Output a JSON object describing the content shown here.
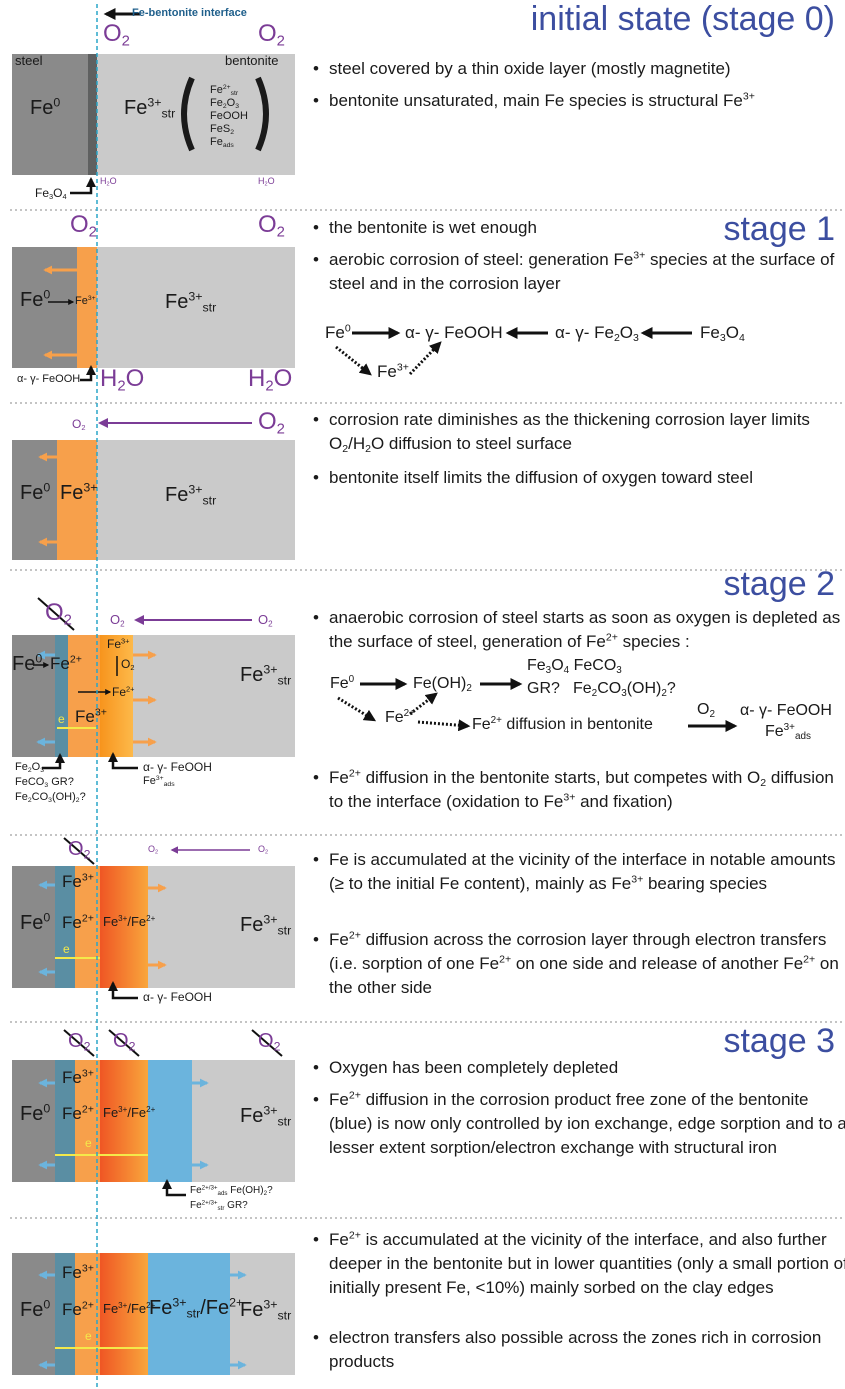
{
  "interface_label": "Fe-bentonite interface",
  "panels": [
    {
      "heading": "initial state (stage 0)",
      "labels": [
        [
          "O",
          {
            "sub": "2"
          }
        ],
        [
          "O",
          {
            "sub": "2"
          }
        ],
        "steel",
        "bentonite",
        [
          "Fe",
          {
            "sup": "0"
          }
        ],
        [
          "Fe",
          {
            "sup": "3+"
          },
          {
            "sub": "str"
          }
        ],
        [
          "Fe",
          {
            "sup": "2+"
          },
          {
            "sub": "str"
          }
        ],
        [
          "Fe",
          {
            "sub": "2"
          },
          "O",
          {
            "sub": "3"
          }
        ],
        "FeOOH",
        [
          "FeS",
          {
            "sub": "2"
          }
        ],
        [
          "Fe",
          {
            "sub": "ads"
          }
        ],
        [
          "H",
          {
            "sub": "2"
          },
          "O"
        ],
        [
          "H",
          {
            "sub": "2"
          },
          "O"
        ],
        [
          "Fe",
          {
            "sub": "3"
          },
          "O",
          {
            "sub": "4"
          }
        ]
      ],
      "bullets": [
        "steel covered by a thin oxide layer (mostly magnetite)",
        [
          "bentonite unsaturated, main Fe species is structural Fe",
          {
            "sup": "3+"
          }
        ]
      ]
    },
    {
      "heading": "stage 1",
      "labels": [
        [
          "O",
          {
            "sub": "2"
          }
        ],
        [
          "O",
          {
            "sub": "2"
          }
        ],
        [
          "Fe",
          {
            "sup": "0"
          }
        ],
        [
          "Fe",
          {
            "sup": "3+"
          }
        ],
        [
          "Fe",
          {
            "sup": "3+"
          },
          {
            "sub": "str"
          }
        ],
        "α- γ- FeOOH",
        [
          "H",
          {
            "sub": "2"
          },
          "O"
        ],
        [
          "H",
          {
            "sub": "2"
          },
          "O"
        ]
      ],
      "bullets": [
        "the bentonite is wet enough",
        [
          "aerobic corrosion of steel: generation Fe",
          {
            "sup": "3+"
          },
          " species at the surface of steel and in the corrosion layer"
        ]
      ],
      "scheme": [
        [
          "Fe",
          {
            "sup": "0"
          }
        ],
        "α- γ- FeOOH",
        [
          "α- γ- Fe",
          {
            "sub": "2"
          },
          "O",
          {
            "sub": "3"
          }
        ],
        [
          "Fe",
          {
            "sub": "3"
          },
          "O",
          {
            "sub": "4"
          }
        ],
        [
          "Fe",
          {
            "sup": "3+"
          }
        ]
      ]
    },
    {
      "labels": [
        [
          "O",
          {
            "sub": "2"
          }
        ],
        [
          "O",
          {
            "sub": "2"
          }
        ],
        [
          "Fe",
          {
            "sup": "0"
          }
        ],
        [
          "Fe",
          {
            "sup": "3+"
          }
        ],
        [
          "Fe",
          {
            "sup": "3+"
          },
          {
            "sub": "str"
          }
        ]
      ],
      "bullets": [
        [
          "corrosion rate diminishes as the thickening corrosion layer limits O",
          {
            "sub": "2"
          },
          "/H",
          {
            "sub": "2"
          },
          "O diffusion  to steel surface"
        ],
        "bentonite itself limits the diffusion of oxygen toward steel"
      ]
    },
    {
      "heading": "stage 2",
      "labels": [
        [
          "O",
          {
            "sub": "2"
          }
        ],
        [
          "O",
          {
            "sub": "2"
          }
        ],
        [
          "O",
          {
            "sub": "2"
          }
        ],
        [
          "Fe",
          {
            "sup": "0"
          }
        ],
        [
          "Fe",
          {
            "sup": "2+"
          }
        ],
        [
          "Fe",
          {
            "sup": "3+"
          }
        ],
        [
          "O",
          {
            "sub": "2"
          }
        ],
        [
          "Fe",
          {
            "sup": "2+"
          }
        ],
        [
          "Fe",
          {
            "sup": "3+"
          }
        ],
        "e",
        [
          "Fe",
          {
            "sup": "3+"
          },
          {
            "sub": "str"
          }
        ],
        [
          "Fe",
          {
            "sub": "2"
          },
          "O",
          {
            "sub": "3"
          }
        ],
        [
          "FeCO",
          {
            "sub": "3"
          },
          "  GR?"
        ],
        [
          "Fe",
          {
            "sub": "2"
          },
          "CO",
          {
            "sub": "3"
          },
          "(OH)",
          {
            "sub": "2"
          },
          "?"
        ],
        "α- γ- FeOOH",
        [
          "Fe",
          {
            "sup": "3+"
          },
          {
            "sub": "ads"
          }
        ]
      ],
      "bullets": [
        [
          "anaerobic corrosion of steel starts as soon as oxygen is depleted as the surface of steel, generation of Fe",
          {
            "sup": "2+"
          },
          " species :"
        ],
        [
          "Fe",
          {
            "sup": "2+"
          },
          " diffusion in the bentonite starts, but competes with O",
          {
            "sub": "2"
          },
          " diffusion to the interface (oxidation to Fe",
          {
            "sup": "3+"
          },
          " and fixation)"
        ]
      ],
      "scheme": [
        [
          "Fe",
          {
            "sup": "0"
          }
        ],
        [
          "Fe(OH)",
          {
            "sub": "2"
          }
        ],
        [
          "Fe",
          {
            "sub": "3"
          },
          "O",
          {
            "sub": "4"
          },
          "  FeCO",
          {
            "sub": "3"
          }
        ],
        "GR?",
        [
          "Fe",
          {
            "sub": "2"
          },
          "CO",
          {
            "sub": "3"
          },
          "(OH)",
          {
            "sub": "2"
          },
          "?"
        ],
        [
          "Fe",
          {
            "sup": "2+"
          }
        ],
        [
          "Fe",
          {
            "sup": "2+"
          },
          " diffusion  in bentonite"
        ],
        [
          "O",
          {
            "sub": "2"
          }
        ],
        "α- γ- FeOOH",
        [
          "Fe",
          {
            "sup": "3+"
          },
          {
            "sub": "ads"
          }
        ]
      ]
    },
    {
      "labels": [
        [
          "O",
          {
            "sub": "2"
          }
        ],
        [
          "O",
          {
            "sub": "2"
          }
        ],
        [
          "O",
          {
            "sub": "2"
          }
        ],
        [
          "Fe",
          {
            "sup": "3+"
          }
        ],
        [
          "Fe",
          {
            "sup": "0"
          }
        ],
        [
          "Fe",
          {
            "sup": "2+"
          }
        ],
        [
          "Fe",
          {
            "sup": "3+"
          },
          "/Fe",
          {
            "sup": "2+"
          }
        ],
        "e",
        [
          "Fe",
          {
            "sup": "3+"
          },
          {
            "sub": "str"
          }
        ],
        "α- γ- FeOOH"
      ],
      "bullets": [
        [
          "Fe is accumulated at the vicinity of the interface  in notable amounts (≥ to the initial Fe content), mainly as Fe",
          {
            "sup": "3+"
          },
          " bearing species"
        ],
        [
          "Fe",
          {
            "sup": "2+"
          },
          " diffusion across the corrosion layer through electron transfers (i.e. sorption of one Fe",
          {
            "sup": "2+"
          },
          " on one side and release of another Fe",
          {
            "sup": "2+"
          },
          " on the other side"
        ]
      ]
    },
    {
      "heading": "stage 3",
      "labels": [
        [
          "O",
          {
            "sub": "2"
          }
        ],
        [
          "O",
          {
            "sub": "2"
          }
        ],
        [
          "O",
          {
            "sub": "2"
          }
        ],
        [
          "Fe",
          {
            "sup": "3+"
          }
        ],
        [
          "Fe",
          {
            "sup": "0"
          }
        ],
        [
          "Fe",
          {
            "sup": "2+"
          }
        ],
        [
          "Fe",
          {
            "sup": "3+"
          },
          "/Fe",
          {
            "sup": "2+"
          }
        ],
        "e",
        [
          "Fe",
          {
            "sup": "3+"
          },
          {
            "sub": "str"
          }
        ],
        [
          "Fe",
          {
            "sup": "2+/3+"
          },
          {
            "sub": "ads"
          },
          " Fe(OH)",
          {
            "sub": "2"
          },
          "?"
        ],
        [
          "Fe",
          {
            "sup": "2+/3+"
          },
          {
            "sub": "str"
          },
          " GR?"
        ]
      ],
      "bullets": [
        "Oxygen has been completely depleted",
        [
          "Fe",
          {
            "sup": "2+"
          },
          " diffusion in the corrosion product free zone of the bentonite (blue) is now only controlled by ion exchange, edge sorption and to a lesser extent sorption/electron exchange with structural iron"
        ]
      ]
    },
    {
      "labels": [
        [
          "Fe",
          {
            "sup": "3+"
          }
        ],
        [
          "Fe",
          {
            "sup": "0"
          }
        ],
        [
          "Fe",
          {
            "sup": "2+"
          }
        ],
        [
          "Fe",
          {
            "sup": "3+"
          },
          "/Fe",
          {
            "sup": "2+"
          }
        ],
        [
          "Fe",
          {
            "sup": "3+"
          },
          {
            "sub": "str"
          },
          "/Fe",
          {
            "sup": "2+"
          }
        ],
        [
          "Fe",
          {
            "sup": "3+"
          },
          {
            "sub": "str"
          }
        ],
        "e"
      ],
      "bullets": [
        [
          "Fe",
          {
            "sup": "2+"
          },
          " is accumulated at the vicinity of the interface, and also further deeper in the bentonite but in lower quantities (only a small portion of initially present Fe, <10%) mainly sorbed on the clay edges"
        ],
        "electron transfers also possible across the zones rich in corrosion products"
      ]
    }
  ]
}
